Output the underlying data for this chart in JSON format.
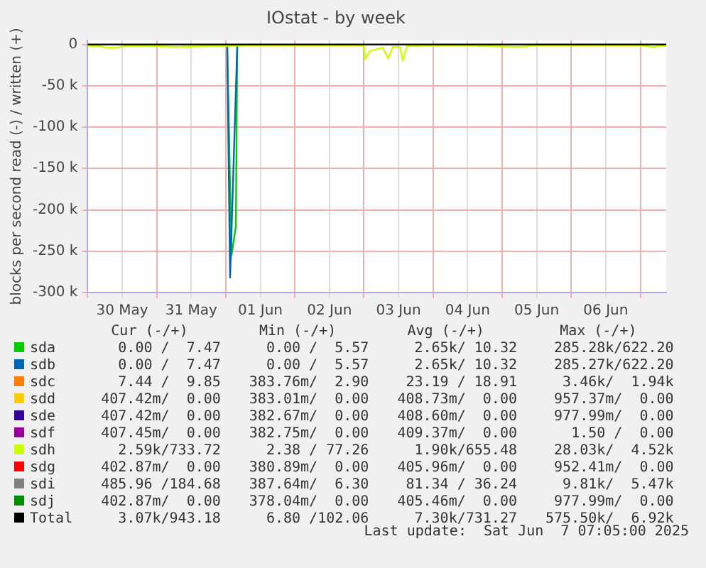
{
  "chart_data": {
    "type": "line",
    "title": "IOstat - by week",
    "ylabel": "blocks per second read (-) / written (+)",
    "xlim": [
      "2025-05-30T00:00",
      "2025-06-07T09:00"
    ],
    "xticks": [
      {
        "value": "2025-05-30T00:00",
        "label": null
      },
      {
        "value": "2025-05-30T12:00",
        "label": "30 May"
      },
      {
        "value": "2025-05-31T00:00",
        "label": null
      },
      {
        "value": "2025-05-31T12:00",
        "label": "31 May"
      },
      {
        "value": "2025-06-01T00:00",
        "label": null
      },
      {
        "value": "2025-06-01T12:00",
        "label": "01 Jun"
      },
      {
        "value": "2025-06-02T00:00",
        "label": null
      },
      {
        "value": "2025-06-02T12:00",
        "label": "02 Jun"
      },
      {
        "value": "2025-06-03T00:00",
        "label": null
      },
      {
        "value": "2025-06-03T12:00",
        "label": "03 Jun"
      },
      {
        "value": "2025-06-04T00:00",
        "label": null
      },
      {
        "value": "2025-06-04T12:00",
        "label": "04 Jun"
      },
      {
        "value": "2025-06-05T00:00",
        "label": null
      },
      {
        "value": "2025-06-05T12:00",
        "label": "05 Jun"
      },
      {
        "value": "2025-06-06T00:00",
        "label": null
      },
      {
        "value": "2025-06-06T12:00",
        "label": "06 Jun"
      },
      {
        "value": "2025-06-07T00:00",
        "label": null
      }
    ],
    "ylim": [
      -300000,
      5000
    ],
    "yticks": [
      {
        "value": -300000,
        "label": "-300 k"
      },
      {
        "value": -250000,
        "label": "-250 k"
      },
      {
        "value": -200000,
        "label": "-200 k"
      },
      {
        "value": -150000,
        "label": "-150 k"
      },
      {
        "value": -100000,
        "label": "-100 k"
      },
      {
        "value": -50000,
        "label": "-50 k"
      },
      0
    ],
    "grid": true,
    "legend": "bottom",
    "marker": "none",
    "series": [
      {
        "name": "sda",
        "color": "#00cc00",
        "x": [
          "2025-06-01T00:30",
          "2025-06-01T02:00",
          "2025-06-01T03:30",
          "2025-06-01T04:00"
        ],
        "values": [
          0,
          -255000,
          -220000,
          0
        ]
      },
      {
        "name": "sdb",
        "color": "#0066b3",
        "x": [
          "2025-06-01T00:30",
          "2025-06-01T01:30",
          "2025-06-01T04:00"
        ],
        "values": [
          0,
          -282000,
          0
        ]
      },
      {
        "name": "sdc",
        "color": "#ff8000"
      },
      {
        "name": "sdd",
        "color": "#ffcc00"
      },
      {
        "name": "sde",
        "color": "#330099"
      },
      {
        "name": "sdf",
        "color": "#990099"
      },
      {
        "name": "sdh",
        "color": "#ccff00",
        "x": [
          "2025-05-30T00:00",
          "2025-05-30T04:00",
          "2025-05-30T06:30",
          "2025-05-30T10:30",
          "2025-05-30T12:30",
          "2025-05-31T00:00",
          "2025-05-31T07:30",
          "2025-05-31T17:30",
          "2025-06-01T00:30",
          "2025-06-01T08:30",
          "2025-06-02T00:30",
          "2025-06-02T19:30",
          "2025-06-03T00:00",
          "2025-06-03T00:30",
          "2025-06-03T02:00",
          "2025-06-03T06:30",
          "2025-06-03T08:30",
          "2025-06-03T10:00",
          "2025-06-03T12:30",
          "2025-06-03T13:30",
          "2025-06-03T15:00",
          "2025-06-04T06:30",
          "2025-06-05T06:30",
          "2025-06-05T12:30",
          "2025-06-06T23:30",
          "2025-06-07T04:30",
          "2025-06-07T09:00"
        ],
        "values": [
          -2000,
          -2000,
          -4000,
          -4000,
          -2000,
          -2000,
          -3000,
          -2000,
          -2000,
          -1000,
          -1000,
          -1000,
          -1000,
          -18000,
          -8000,
          -4000,
          -17000,
          -3000,
          -3000,
          -19000,
          -2000,
          -1000,
          -3000,
          -1000,
          -1000,
          -3000,
          -1000
        ]
      },
      {
        "name": "sdg",
        "color": "#ff0000"
      },
      {
        "name": "sdi",
        "color": "#808080"
      },
      {
        "name": "sdj",
        "color": "#008f00"
      },
      {
        "name": "Total",
        "color": "#000000",
        "x": [
          "2025-05-30T00:00",
          "2025-06-07T09:00"
        ],
        "values": [
          0,
          0
        ]
      }
    ],
    "annotations": [
      "Cur (-/+)",
      "Min (-/+)",
      "Avg (-/+)",
      "Max (-/+)",
      "0.00 /  7.47",
      "0.00 /  5.57",
      "2.65k/ 10.32",
      "285.28k/622.20",
      "0.00 /  7.47",
      "0.00 /  5.57",
      "2.65k/ 10.32",
      "285.27k/622.20",
      "7.44 /  9.85",
      "383.76m/  2.90",
      "23.19 / 18.91",
      "3.46k/  1.94k",
      "407.42m/  0.00",
      "383.01m/  0.00",
      "408.73m/  0.00",
      "957.37m/  0.00",
      "407.42m/  0.00",
      "382.67m/  0.00",
      "408.60m/  0.00",
      "977.99m/  0.00",
      "407.45m/  0.00",
      "382.75m/  0.00",
      "409.37m/  0.00",
      "1.50 /  0.00",
      "2.59k/733.72",
      "2.38 / 77.26",
      "1.90k/655.48",
      "28.03k/  4.52k",
      "402.87m/  0.00",
      "380.89m/  0.00",
      "405.96m/  0.00",
      "952.41m/  0.00",
      "485.96 /184.68",
      "387.64m/  6.30",
      "81.34 / 36.24",
      "9.81k/  5.47k",
      "402.87m/  0.00",
      "378.04m/  0.00",
      "405.46m/  0.00",
      "977.99m/  0.00",
      "3.07k/943.18",
      "6.80 /102.06",
      "7.30k/731.27",
      "575.50k/  6.92k",
      "Last update:  Sat Jun  7 07:05:00 2025"
    ]
  }
}
